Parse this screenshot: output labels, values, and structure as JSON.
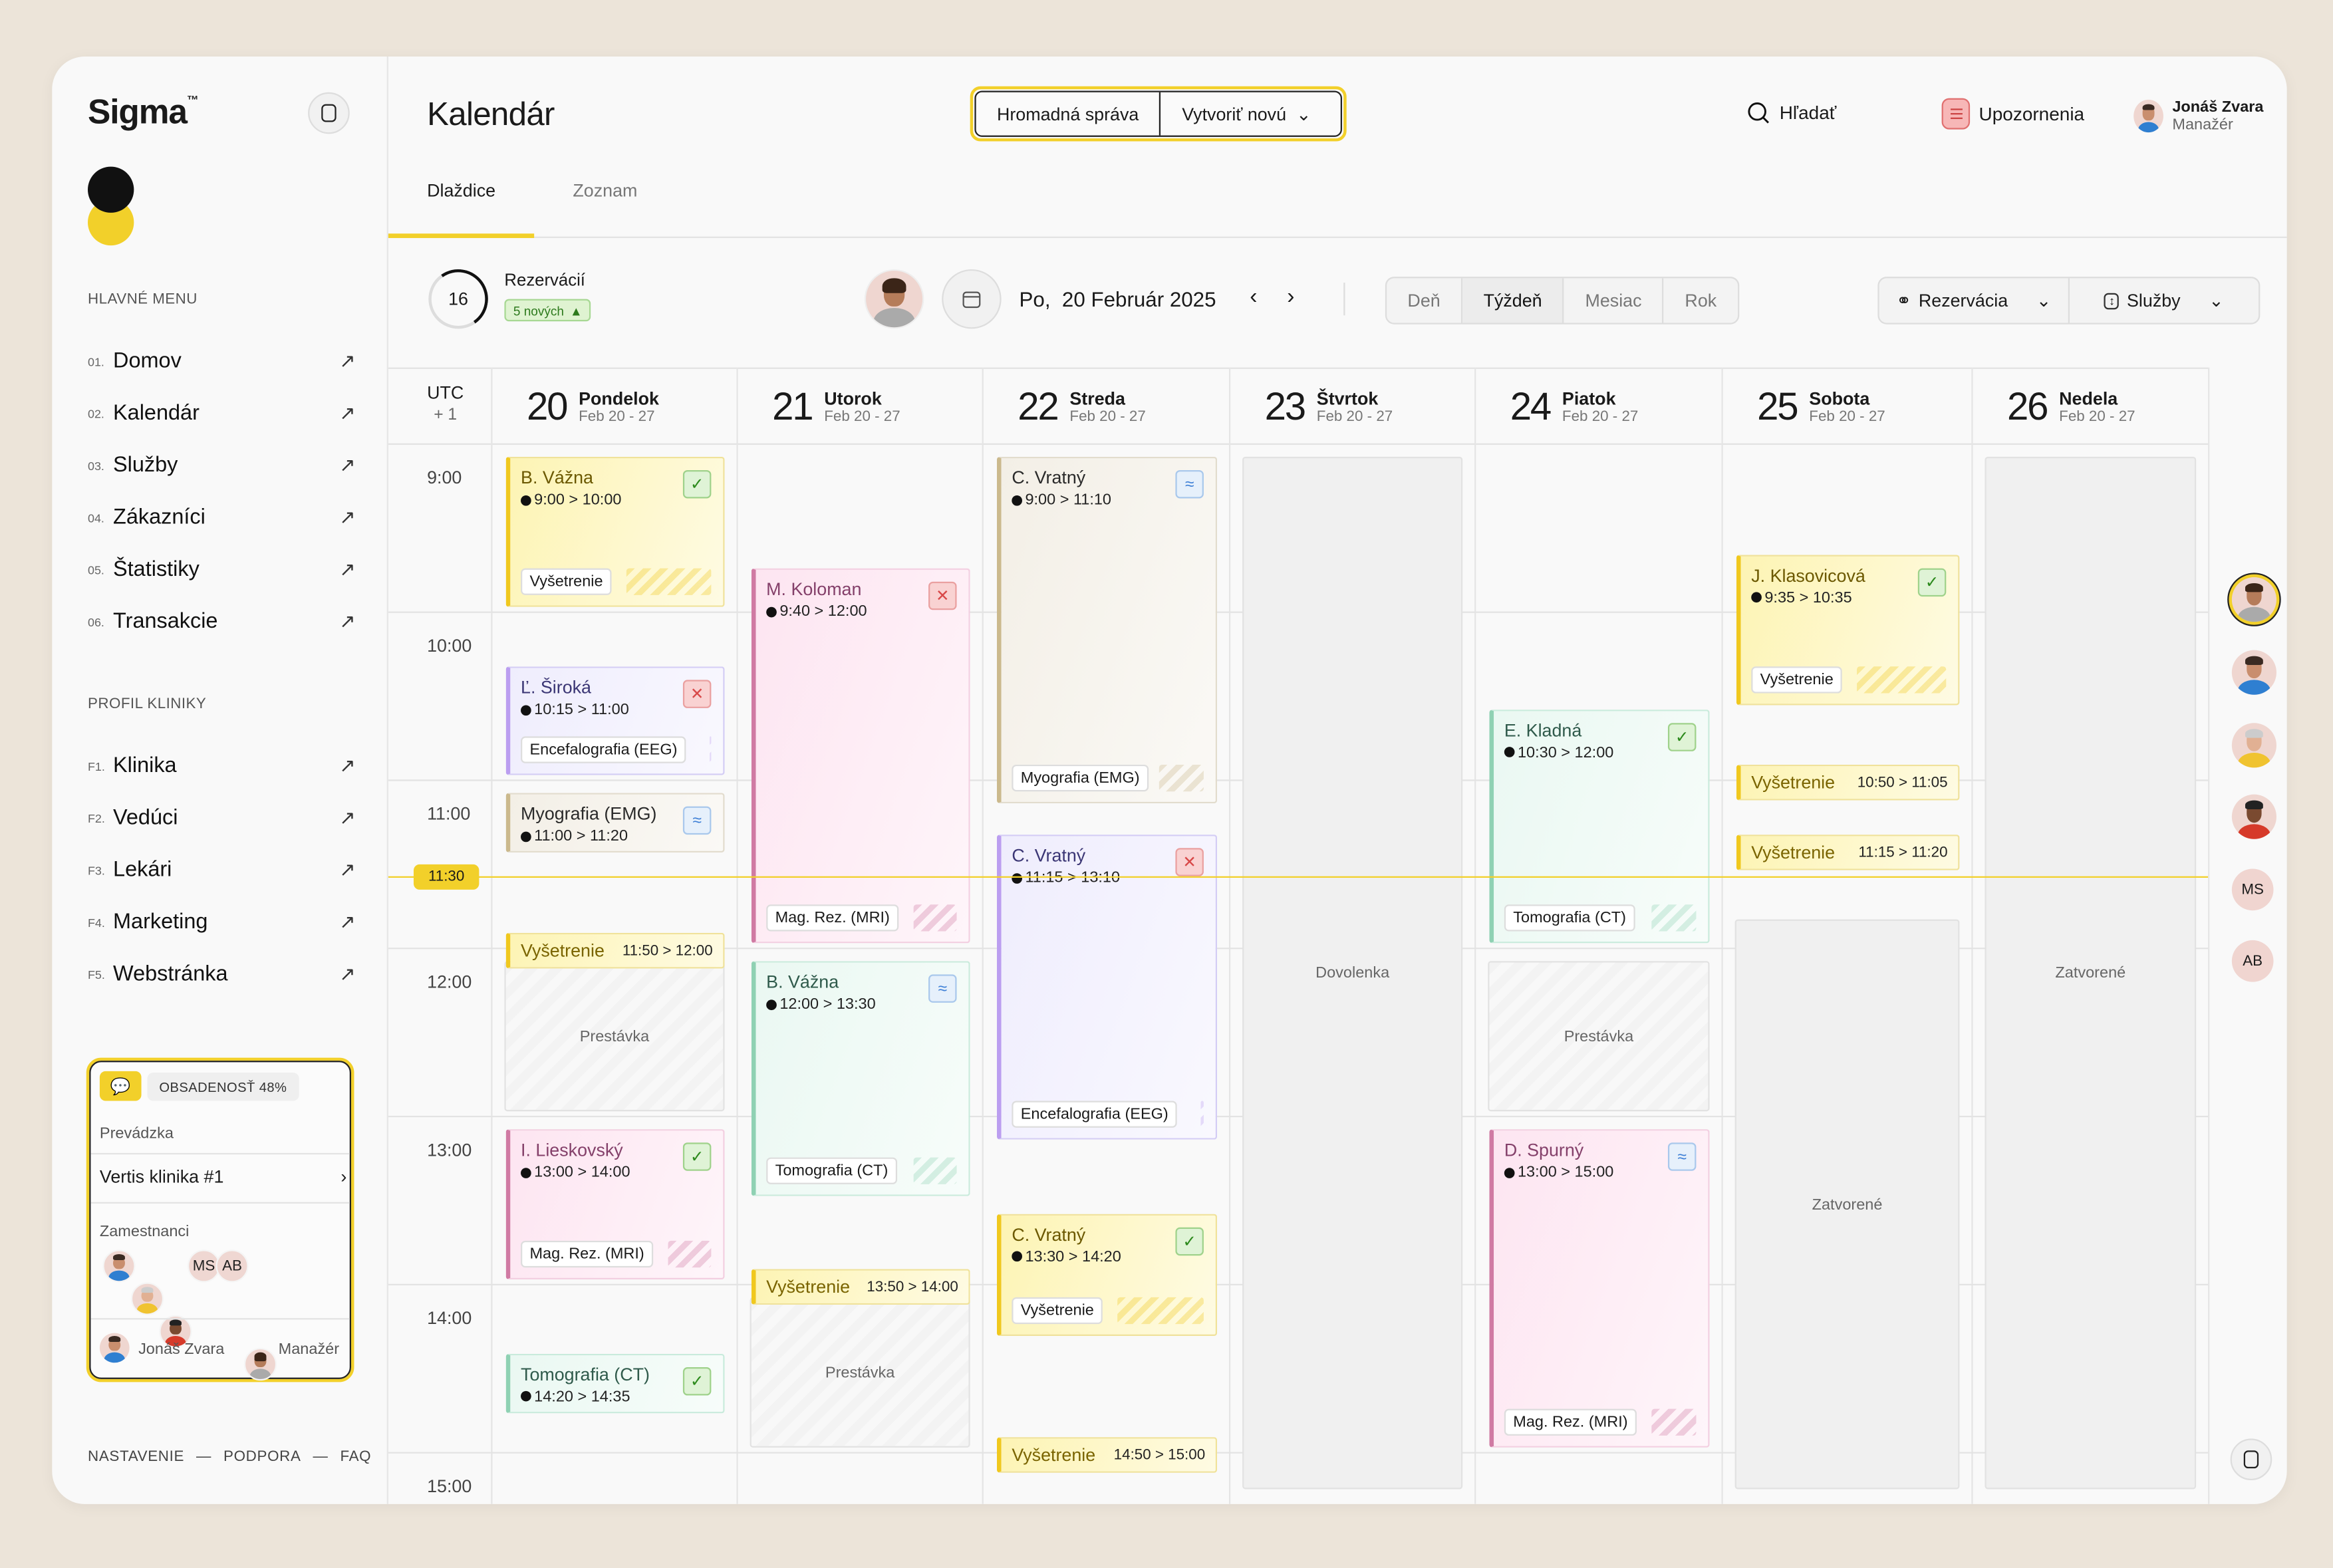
{
  "sidebar": {
    "brand": "Sigma",
    "brand_mark": "™",
    "main_menu_label": "HLAVNÉ MENU",
    "main_menu": [
      {
        "num": "01.",
        "label": "Domov"
      },
      {
        "num": "02.",
        "label": "Kalendár"
      },
      {
        "num": "03.",
        "label": "Služby"
      },
      {
        "num": "04.",
        "label": "Zákazníci"
      },
      {
        "num": "05.",
        "label": "Štatistiky"
      },
      {
        "num": "06.",
        "label": "Transakcie"
      }
    ],
    "profile_label": "PROFIL KLINIKY",
    "profile_menu": [
      {
        "num": "F1.",
        "label": "Klinika"
      },
      {
        "num": "F2.",
        "label": "Vedúci"
      },
      {
        "num": "F3.",
        "label": "Lekári"
      },
      {
        "num": "F4.",
        "label": "Marketing"
      },
      {
        "num": "F5.",
        "label": "Webstránka"
      }
    ],
    "clinic_card": {
      "occupancy": "OBSADENOSŤ 48%",
      "location_label": "Prevádzka",
      "location": "Vertis klinika #1",
      "staff_label": "Zamestnanci",
      "staff_initials": [
        "MS",
        "AB"
      ],
      "user_name": "Jonáš Zvara",
      "user_role": "Manažér"
    },
    "footer": [
      "NASTAVENIE",
      "—",
      "PODPORA",
      "—",
      "FAQ"
    ]
  },
  "header": {
    "title": "Kalendár",
    "bulk_message": "Hromadná správa",
    "create_new": "Vytvoriť novú",
    "search": "Hľadať",
    "notifications": "Upozornenia",
    "user_name": "Jonáš Zvara",
    "user_role": "Manažér"
  },
  "tabs": [
    {
      "label": "Dlaždice",
      "active": true
    },
    {
      "label": "Zoznam",
      "active": false
    }
  ],
  "toolbar": {
    "reservations_count": "16",
    "reservations_label": "Rezervácií",
    "new_badge": "5 nových",
    "date": "Po,  20 Február 2025",
    "views": [
      {
        "label": "Deň"
      },
      {
        "label": "Týždeň",
        "active": true
      },
      {
        "label": "Mesiac"
      },
      {
        "label": "Rok"
      }
    ],
    "filter_reservation": "Rezervácia",
    "filter_services": "Služby"
  },
  "calendar": {
    "tz_label": "UTC",
    "tz_offset": "+ 1",
    "days": [
      {
        "num": "20",
        "name": "Pondelok",
        "range": "Feb 20 - 27"
      },
      {
        "num": "21",
        "name": "Utorok",
        "range": "Feb 20 - 27"
      },
      {
        "num": "22",
        "name": "Streda",
        "range": "Feb 20 - 27"
      },
      {
        "num": "23",
        "name": "Štvrtok",
        "range": "Feb 20 - 27"
      },
      {
        "num": "24",
        "name": "Piatok",
        "range": "Feb 20 - 27"
      },
      {
        "num": "25",
        "name": "Sobota",
        "range": "Feb 20 - 27"
      },
      {
        "num": "26",
        "name": "Nedela",
        "range": "Feb 20 - 27"
      }
    ],
    "hours": [
      "9:00",
      "10:00",
      "11:00",
      "12:00",
      "13:00",
      "14:00",
      "15:00"
    ],
    "current_time": "11:30",
    "colors": {
      "yellow": {
        "bg": "#fdf4b4",
        "border": "#f0e29a",
        "accent": "#f0c81e",
        "text": "#6b5800"
      },
      "purple": {
        "bg": "#efedfd",
        "border": "#d4cdf5",
        "accent": "#bb9ef0",
        "text": "#3b3675"
      },
      "beige": {
        "bg": "#f3efe6",
        "border": "#e2dccd",
        "accent": "#cbb98d",
        "text": "#2a2a2a"
      },
      "pink": {
        "bg": "#fde5f1",
        "border": "#f3cfe1",
        "accent": "#d07aa3",
        "text": "#84406a"
      },
      "mint": {
        "bg": "#eaf8f2",
        "border": "#c9ebdc",
        "accent": "#8fd1b3",
        "text": "#2f5a4b"
      }
    },
    "events": [
      {
        "day": 0,
        "name": "B. Vážna",
        "start": "9:00",
        "end": "10:00",
        "service": "Vyšetrenie",
        "color": "yellow",
        "status": "confirmed"
      },
      {
        "day": 0,
        "name": "Ľ. Široká",
        "start": "10:15",
        "end": "11:00",
        "service": "Encefalografia (EEG)",
        "color": "purple",
        "status": "cancelled"
      },
      {
        "day": 0,
        "name": "Myografia (EMG)",
        "start": "11:00",
        "end": "11:20",
        "color": "beige",
        "status": "pending"
      },
      {
        "day": 0,
        "name": "Vyšetrenie",
        "start": "11:50",
        "end": "12:00",
        "color": "yellow",
        "compact": true
      },
      {
        "day": 0,
        "name": "I. Lieskovský",
        "start": "13:00",
        "end": "14:00",
        "service": "Mag. Rez. (MRI)",
        "color": "pink",
        "status": "confirmed"
      },
      {
        "day": 0,
        "name": "Tomografia (CT)",
        "start": "14:20",
        "end": "14:35",
        "color": "mint",
        "status": "confirmed"
      },
      {
        "day": 1,
        "name": "M. Koloman",
        "start": "9:40",
        "end": "12:00",
        "service": "Mag. Rez. (MRI)",
        "color": "pink",
        "status": "cancelled"
      },
      {
        "day": 1,
        "name": "B. Vážna",
        "start": "12:00",
        "end": "13:30",
        "service": "Tomografia (CT)",
        "color": "mint",
        "status": "pending"
      },
      {
        "day": 1,
        "name": "Vyšetrenie",
        "start": "13:50",
        "end": "14:00",
        "color": "yellow",
        "compact": true
      },
      {
        "day": 2,
        "name": "C. Vratný",
        "start": "9:00",
        "end": "11:10",
        "service": "Myografia (EMG)",
        "color": "beige",
        "status": "pending"
      },
      {
        "day": 2,
        "name": "C. Vratný",
        "start": "11:15",
        "end": "13:10",
        "service": "Encefalografia (EEG)",
        "color": "purple",
        "status": "cancelled"
      },
      {
        "day": 2,
        "name": "C. Vratný",
        "start": "13:30",
        "end": "14:20",
        "service": "Vyšetrenie",
        "color": "yellow",
        "status": "confirmed"
      },
      {
        "day": 2,
        "name": "Vyšetrenie",
        "start": "14:50",
        "end": "15:00",
        "color": "yellow",
        "compact": true
      },
      {
        "day": 4,
        "name": "E. Kladná",
        "start": "10:30",
        "end": "12:00",
        "service": "Tomografia (CT)",
        "color": "mint",
        "status": "confirmed"
      },
      {
        "day": 4,
        "name": "D. Spurný",
        "start": "13:00",
        "end": "15:00",
        "service": "Mag. Rez. (MRI)",
        "color": "pink",
        "status": "pending"
      },
      {
        "day": 5,
        "name": "J. Klasovicová",
        "start": "9:35",
        "end": "10:35",
        "service": "Vyšetrenie",
        "color": "yellow",
        "status": "confirmed"
      },
      {
        "day": 5,
        "name": "Vyšetrenie",
        "start": "10:50",
        "end": "11:05",
        "color": "yellow",
        "compact": true
      },
      {
        "day": 5,
        "name": "Vyšetrenie",
        "start": "11:15",
        "end": "11:20",
        "color": "yellow",
        "compact": true
      }
    ],
    "blocks": [
      {
        "day": 0,
        "label": "Prestávka",
        "start": "12:00",
        "end": "13:00",
        "style": "hatch"
      },
      {
        "day": 1,
        "label": "Prestávka",
        "start": "14:00",
        "end": "15:00",
        "style": "hatch"
      },
      {
        "day": 3,
        "label": "Dovolenka",
        "start": "9:00",
        "end": "15:15",
        "style": "plain"
      },
      {
        "day": 4,
        "label": "Prestávka",
        "start": "12:00",
        "end": "13:00",
        "style": "hatch"
      },
      {
        "day": 5,
        "label": "Zatvorené",
        "start": "11:45",
        "end": "15:15",
        "style": "plain"
      },
      {
        "day": 6,
        "label": "Zatvorené",
        "start": "9:00",
        "end": "15:15",
        "style": "plain"
      }
    ],
    "status_icons": {
      "confirmed": "✓",
      "cancelled": "✕",
      "pending": "≈"
    }
  },
  "staff_rail": {
    "initials": [
      "MS",
      "AB"
    ]
  }
}
